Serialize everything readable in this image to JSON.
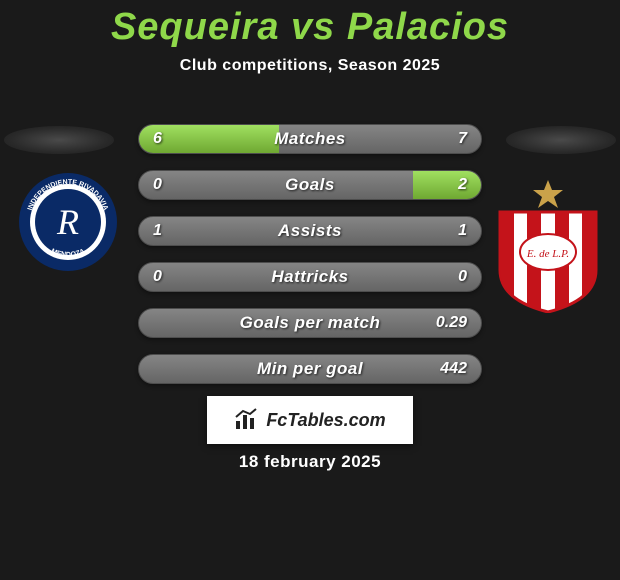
{
  "title_color": "#8fd84a",
  "title": "Sequeira vs Palacios",
  "subtitle": "Club competitions, Season 2025",
  "date": "18 february 2025",
  "branding": {
    "label": "FcTables.com"
  },
  "bars": [
    {
      "label": "Matches",
      "left_text": "6",
      "right_text": "7",
      "left_pct": 41,
      "right_pct": 0
    },
    {
      "label": "Goals",
      "left_text": "0",
      "right_text": "2",
      "left_pct": 0,
      "right_pct": 20
    },
    {
      "label": "Assists",
      "left_text": "1",
      "right_text": "1",
      "left_pct": 0,
      "right_pct": 0
    },
    {
      "label": "Hattricks",
      "left_text": "0",
      "right_text": "0",
      "left_pct": 0,
      "right_pct": 0
    },
    {
      "label": "Goals per match",
      "left_text": "",
      "right_text": "0.29",
      "left_pct": 0,
      "right_pct": 0
    },
    {
      "label": "Min per goal",
      "left_text": "",
      "right_text": "442",
      "left_pct": 0,
      "right_pct": 0
    }
  ],
  "crest_left": {
    "ring_outer": "#0a2a66",
    "ring_inner": "#ffffff",
    "center": "#0a2a66",
    "text_top": "INDEPENDIENTE RIVADAVIA",
    "text_bottom": "MENDOZA",
    "monogram": "R"
  },
  "crest_right": {
    "star": "#caa24a",
    "stripe_red": "#c4131a",
    "stripe_white": "#ffffff",
    "outline": "#c4131a",
    "monogram": "E. de L.P."
  },
  "colors": {
    "background": "#1a1a1a",
    "bar_base_top": "#858585",
    "bar_base_bottom": "#656565",
    "bar_fill_top": "#a0e060",
    "bar_fill_bottom": "#6fa832",
    "text": "#ffffff"
  }
}
